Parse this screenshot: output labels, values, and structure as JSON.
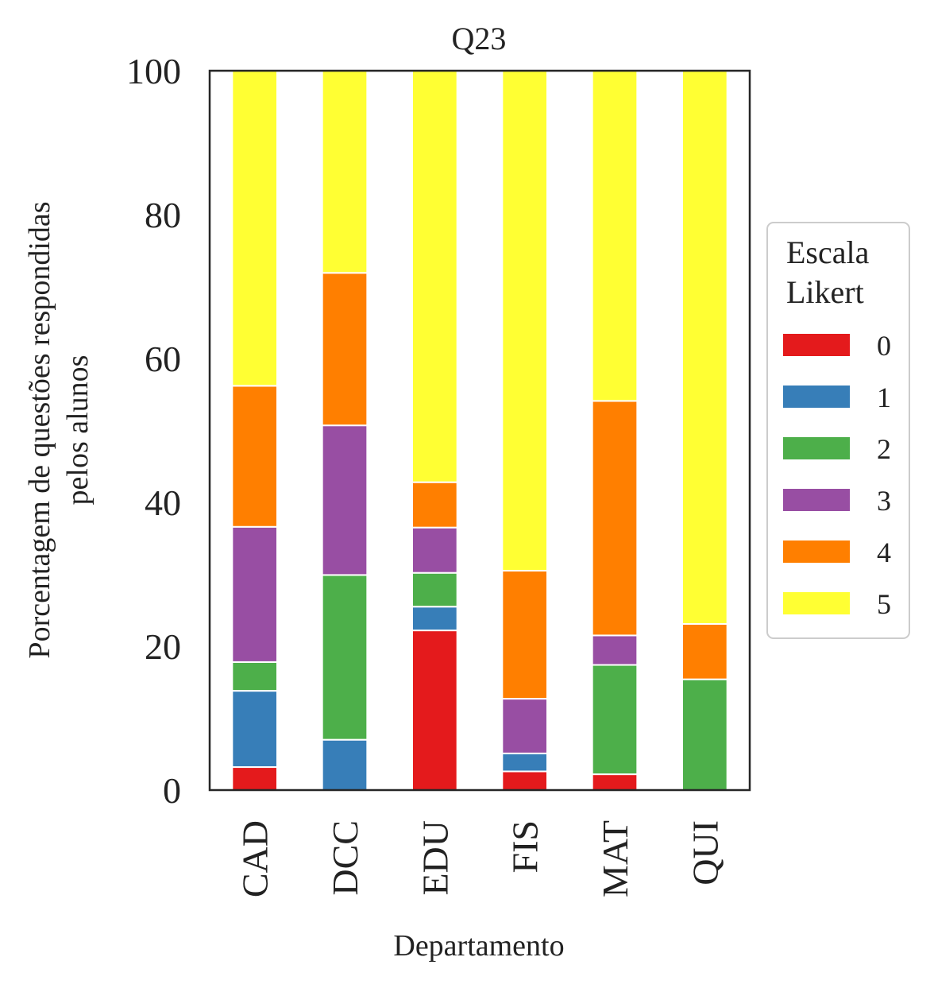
{
  "chart_data": {
    "type": "bar",
    "stacked": true,
    "title": "Q23",
    "xlabel": "Departamento",
    "ylabel_lines": [
      "Porcentagem de questões respondidas",
      "pelos alunos"
    ],
    "ylim": [
      0,
      100
    ],
    "yticks": [
      "0",
      "20",
      "40",
      "60",
      "80",
      "100"
    ],
    "categories": [
      "CAD",
      "DCC",
      "EDU",
      "FIS",
      "MAT",
      "QUI"
    ],
    "legend": {
      "title_lines": [
        "Escala",
        "Likert"
      ],
      "placement": "right"
    },
    "grid": false,
    "series": [
      {
        "name": "0",
        "color": "#e41a1c",
        "values": [
          3.2,
          0,
          22.2,
          2.6,
          2.2,
          0
        ]
      },
      {
        "name": "1",
        "color": "#377eb8",
        "values": [
          10.6,
          7.0,
          3.3,
          2.5,
          0,
          0
        ]
      },
      {
        "name": "2",
        "color": "#4daf4a",
        "values": [
          4.0,
          22.9,
          4.7,
          0,
          15.2,
          15.4
        ]
      },
      {
        "name": "3",
        "color": "#984ea3",
        "values": [
          18.8,
          20.8,
          6.3,
          7.6,
          4.1,
          0
        ]
      },
      {
        "name": "4",
        "color": "#ff7f00",
        "values": [
          19.6,
          21.2,
          6.3,
          17.8,
          32.6,
          7.7
        ]
      },
      {
        "name": "5",
        "color": "#ffff33",
        "values": [
          43.8,
          28.1,
          57.2,
          69.5,
          45.9,
          76.9
        ]
      }
    ]
  }
}
